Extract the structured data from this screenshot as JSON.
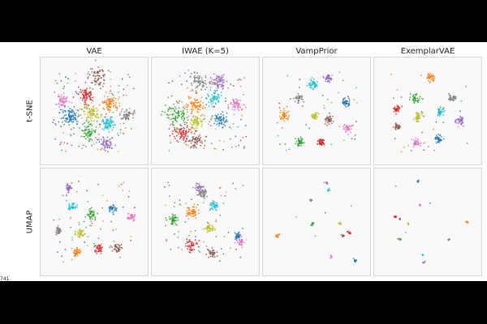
{
  "colors": {
    "figure_background": "#ffffff",
    "panel_background": "#f9f9f9",
    "panel_border": "#d7d7d7",
    "letterbox": "#000000"
  },
  "page_label": "741",
  "chart_data": {
    "type": "scatter",
    "columns": [
      "VAE",
      "IWAE (K=5)",
      "VampPrior",
      "ExemplarVAE"
    ],
    "rows": [
      "t-SNE",
      "UMAP"
    ],
    "grid": false,
    "class_colors": [
      "#1f77b4",
      "#ff7f0e",
      "#2ca02c",
      "#d62728",
      "#9467bd",
      "#8c564b",
      "#e377c2",
      "#7f7f7f",
      "#bcbd22",
      "#17becf"
    ],
    "axis_range": [
      [
        0,
        1
      ],
      [
        0,
        1
      ]
    ],
    "panels": [
      {
        "row": "t-SNE",
        "column": "VAE",
        "clusters": [
          {
            "class": 0,
            "cx": 0.25,
            "cy": 0.56,
            "spread": 0.11,
            "count": 90
          },
          {
            "class": 1,
            "cx": 0.66,
            "cy": 0.43,
            "spread": 0.08,
            "count": 70
          },
          {
            "class": 2,
            "cx": 0.44,
            "cy": 0.71,
            "spread": 0.09,
            "count": 60
          },
          {
            "class": 3,
            "cx": 0.42,
            "cy": 0.33,
            "spread": 0.09,
            "count": 75
          },
          {
            "class": 4,
            "cx": 0.63,
            "cy": 0.83,
            "spread": 0.08,
            "count": 65
          },
          {
            "class": 5,
            "cx": 0.54,
            "cy": 0.16,
            "spread": 0.1,
            "count": 70
          },
          {
            "class": 6,
            "cx": 0.17,
            "cy": 0.39,
            "spread": 0.07,
            "count": 55
          },
          {
            "class": 7,
            "cx": 0.84,
            "cy": 0.54,
            "spread": 0.08,
            "count": 60
          },
          {
            "class": 8,
            "cx": 0.48,
            "cy": 0.53,
            "spread": 0.09,
            "count": 75
          },
          {
            "class": 9,
            "cx": 0.63,
            "cy": 0.63,
            "spread": 0.08,
            "count": 65
          }
        ],
        "noise_count": 140
      },
      {
        "row": "t-SNE",
        "column": "IWAE (K=5)",
        "clusters": [
          {
            "class": 0,
            "cx": 0.65,
            "cy": 0.59,
            "spread": 0.08,
            "count": 60
          },
          {
            "class": 1,
            "cx": 0.4,
            "cy": 0.44,
            "spread": 0.1,
            "count": 75
          },
          {
            "class": 2,
            "cx": 0.2,
            "cy": 0.55,
            "spread": 0.12,
            "count": 80
          },
          {
            "class": 3,
            "cx": 0.26,
            "cy": 0.73,
            "spread": 0.1,
            "count": 75
          },
          {
            "class": 4,
            "cx": 0.64,
            "cy": 0.19,
            "spread": 0.08,
            "count": 60
          },
          {
            "class": 5,
            "cx": 0.4,
            "cy": 0.81,
            "spread": 0.09,
            "count": 65
          },
          {
            "class": 6,
            "cx": 0.81,
            "cy": 0.43,
            "spread": 0.08,
            "count": 60
          },
          {
            "class": 7,
            "cx": 0.44,
            "cy": 0.2,
            "spread": 0.09,
            "count": 65
          },
          {
            "class": 8,
            "cx": 0.41,
            "cy": 0.61,
            "spread": 0.08,
            "count": 60
          },
          {
            "class": 9,
            "cx": 0.59,
            "cy": 0.35,
            "spread": 0.08,
            "count": 60
          }
        ],
        "noise_count": 110
      },
      {
        "row": "t-SNE",
        "column": "VampPrior",
        "clusters": [
          {
            "class": 0,
            "cx": 0.8,
            "cy": 0.41,
            "spread": 0.05,
            "count": 45
          },
          {
            "class": 1,
            "cx": 0.17,
            "cy": 0.55,
            "spread": 0.05,
            "count": 45
          },
          {
            "class": 2,
            "cx": 0.33,
            "cy": 0.82,
            "spread": 0.045,
            "count": 40
          },
          {
            "class": 3,
            "cx": 0.55,
            "cy": 0.82,
            "spread": 0.05,
            "count": 45
          },
          {
            "class": 4,
            "cx": 0.62,
            "cy": 0.17,
            "spread": 0.045,
            "count": 40
          },
          {
            "class": 5,
            "cx": 0.63,
            "cy": 0.59,
            "spread": 0.045,
            "count": 40
          },
          {
            "class": 6,
            "cx": 0.82,
            "cy": 0.68,
            "spread": 0.05,
            "count": 40
          },
          {
            "class": 7,
            "cx": 0.32,
            "cy": 0.37,
            "spread": 0.045,
            "count": 40
          },
          {
            "class": 8,
            "cx": 0.48,
            "cy": 0.55,
            "spread": 0.045,
            "count": 40
          },
          {
            "class": 9,
            "cx": 0.47,
            "cy": 0.22,
            "spread": 0.05,
            "count": 45
          }
        ],
        "noise_count": 40
      },
      {
        "row": "t-SNE",
        "column": "ExemplarVAE",
        "clusters": [
          {
            "class": 0,
            "cx": 0.61,
            "cy": 0.79,
            "spread": 0.045,
            "count": 40
          },
          {
            "class": 1,
            "cx": 0.53,
            "cy": 0.15,
            "spread": 0.045,
            "count": 40
          },
          {
            "class": 2,
            "cx": 0.37,
            "cy": 0.37,
            "spread": 0.05,
            "count": 40
          },
          {
            "class": 3,
            "cx": 0.18,
            "cy": 0.48,
            "spread": 0.04,
            "count": 35
          },
          {
            "class": 4,
            "cx": 0.84,
            "cy": 0.59,
            "spread": 0.045,
            "count": 40
          },
          {
            "class": 5,
            "cx": 0.19,
            "cy": 0.66,
            "spread": 0.04,
            "count": 35
          },
          {
            "class": 6,
            "cx": 0.38,
            "cy": 0.83,
            "spread": 0.05,
            "count": 40
          },
          {
            "class": 7,
            "cx": 0.75,
            "cy": 0.36,
            "spread": 0.045,
            "count": 35
          },
          {
            "class": 8,
            "cx": 0.4,
            "cy": 0.56,
            "spread": 0.045,
            "count": 40
          },
          {
            "class": 9,
            "cx": 0.63,
            "cy": 0.51,
            "spread": 0.045,
            "count": 40
          }
        ],
        "noise_count": 40
      },
      {
        "row": "UMAP",
        "column": "VAE",
        "clusters": [
          {
            "class": 0,
            "cx": 0.69,
            "cy": 0.37,
            "spread": 0.045,
            "count": 35
          },
          {
            "class": 1,
            "cx": 0.32,
            "cy": 0.81,
            "spread": 0.05,
            "count": 40
          },
          {
            "class": 2,
            "cx": 0.48,
            "cy": 0.42,
            "spread": 0.05,
            "count": 40
          },
          {
            "class": 3,
            "cx": 0.55,
            "cy": 0.77,
            "spread": 0.05,
            "count": 40
          },
          {
            "class": 4,
            "cx": 0.24,
            "cy": 0.15,
            "spread": 0.04,
            "count": 35
          },
          {
            "class": 5,
            "cx": 0.74,
            "cy": 0.77,
            "spread": 0.05,
            "count": 35
          },
          {
            "class": 6,
            "cx": 0.88,
            "cy": 0.45,
            "spread": 0.04,
            "count": 35
          },
          {
            "class": 7,
            "cx": 0.13,
            "cy": 0.59,
            "spread": 0.04,
            "count": 35
          },
          {
            "class": 8,
            "cx": 0.36,
            "cy": 0.62,
            "spread": 0.05,
            "count": 40
          },
          {
            "class": 9,
            "cx": 0.27,
            "cy": 0.35,
            "spread": 0.045,
            "count": 35
          }
        ],
        "noise_count": 80
      },
      {
        "row": "UMAP",
        "column": "IWAE (K=5)",
        "clusters": [
          {
            "class": 0,
            "cx": 0.83,
            "cy": 0.64,
            "spread": 0.04,
            "count": 35
          },
          {
            "class": 1,
            "cx": 0.36,
            "cy": 0.4,
            "spread": 0.07,
            "count": 55
          },
          {
            "class": 2,
            "cx": 0.17,
            "cy": 0.49,
            "spread": 0.06,
            "count": 45
          },
          {
            "class": 3,
            "cx": 0.35,
            "cy": 0.74,
            "spread": 0.06,
            "count": 45
          },
          {
            "class": 4,
            "cx": 0.44,
            "cy": 0.15,
            "spread": 0.05,
            "count": 35
          },
          {
            "class": 5,
            "cx": 0.57,
            "cy": 0.82,
            "spread": 0.05,
            "count": 35
          },
          {
            "class": 6,
            "cx": 0.86,
            "cy": 0.7,
            "spread": 0.05,
            "count": 35
          },
          {
            "class": 7,
            "cx": 0.47,
            "cy": 0.2,
            "spread": 0.06,
            "count": 45
          },
          {
            "class": 8,
            "cx": 0.54,
            "cy": 0.56,
            "spread": 0.06,
            "count": 45
          },
          {
            "class": 9,
            "cx": 0.59,
            "cy": 0.33,
            "spread": 0.05,
            "count": 40
          }
        ],
        "noise_count": 70
      },
      {
        "row": "UMAP",
        "column": "VampPrior",
        "clusters": [
          {
            "class": 0,
            "cx": 0.9,
            "cy": 0.9,
            "spread": 0.02,
            "count": 14
          },
          {
            "class": 1,
            "cx": 0.1,
            "cy": 0.64,
            "spread": 0.02,
            "count": 14
          },
          {
            "class": 2,
            "cx": 0.46,
            "cy": 0.52,
            "spread": 0.018,
            "count": 10
          },
          {
            "class": 3,
            "cx": 0.84,
            "cy": 0.61,
            "spread": 0.02,
            "count": 12
          },
          {
            "class": 4,
            "cx": 0.6,
            "cy": 0.1,
            "spread": 0.022,
            "count": 12
          },
          {
            "class": 5,
            "cx": 0.77,
            "cy": 0.64,
            "spread": 0.02,
            "count": 12
          },
          {
            "class": 6,
            "cx": 0.65,
            "cy": 0.86,
            "spread": 0.015,
            "count": 8
          },
          {
            "class": 7,
            "cx": 0.44,
            "cy": 0.27,
            "spread": 0.015,
            "count": 9
          },
          {
            "class": 8,
            "cx": 0.74,
            "cy": 0.52,
            "spread": 0.018,
            "count": 10
          },
          {
            "class": 9,
            "cx": 0.62,
            "cy": 0.17,
            "spread": 0.018,
            "count": 10
          }
        ],
        "noise_count": 4
      },
      {
        "row": "UMAP",
        "column": "ExemplarVAE",
        "clusters": [
          {
            "class": 0,
            "cx": 0.4,
            "cy": 0.08,
            "spread": 0.015,
            "count": 8
          },
          {
            "class": 1,
            "cx": 0.9,
            "cy": 0.5,
            "spread": 0.015,
            "count": 8
          },
          {
            "class": 2,
            "cx": 0.21,
            "cy": 0.68,
            "spread": 0.015,
            "count": 8
          },
          {
            "class": 3,
            "cx": 0.17,
            "cy": 0.44,
            "spread": 0.015,
            "count": 8
          },
          {
            "class": 4,
            "cx": 0.46,
            "cy": 0.91,
            "spread": 0.012,
            "count": 6
          },
          {
            "class": 5,
            "cx": 0.22,
            "cy": 0.47,
            "spread": 0.012,
            "count": 6
          },
          {
            "class": 6,
            "cx": 0.42,
            "cy": 0.33,
            "spread": 0.015,
            "count": 7
          },
          {
            "class": 7,
            "cx": 0.72,
            "cy": 0.68,
            "spread": 0.012,
            "count": 6
          },
          {
            "class": 8,
            "cx": 0.3,
            "cy": 0.52,
            "spread": 0.012,
            "count": 6
          },
          {
            "class": 9,
            "cx": 0.45,
            "cy": 0.84,
            "spread": 0.012,
            "count": 6
          }
        ],
        "noise_count": 3
      }
    ]
  }
}
